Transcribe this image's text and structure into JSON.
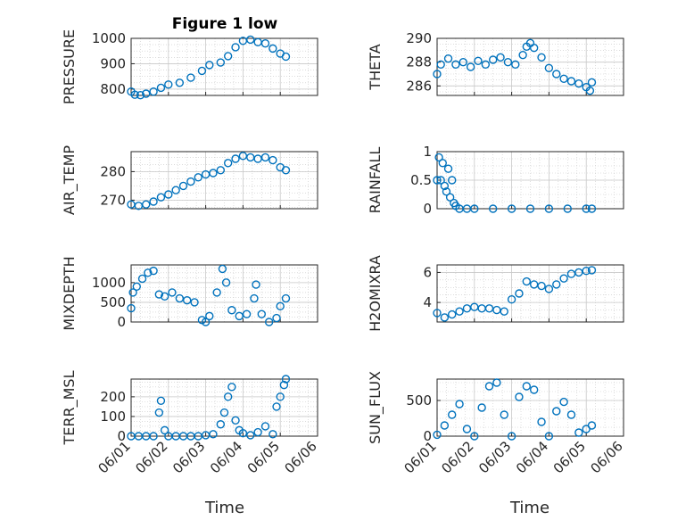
{
  "figure": {
    "title": "Figure 1 low",
    "xlabel": "Time",
    "colors": {
      "marker": "#0072bd",
      "axis": "#262626",
      "grid": "#c8c8c8"
    }
  },
  "chart_data": [
    {
      "type": "scatter",
      "ylabel": "PRESSURE",
      "xlim": [
        "06/01",
        "06/06"
      ],
      "ylim": [
        775,
        1000
      ],
      "yticks": [
        800,
        900,
        1000
      ],
      "x": [
        1.0,
        1.1,
        1.25,
        1.4,
        1.6,
        1.8,
        2.0,
        2.3,
        2.6,
        2.9,
        3.1,
        3.4,
        3.6,
        3.8,
        4.0,
        4.2,
        4.4,
        4.6,
        4.8,
        5.0,
        5.15
      ],
      "y": [
        790,
        778,
        776,
        782,
        790,
        805,
        818,
        825,
        845,
        872,
        895,
        905,
        930,
        965,
        990,
        995,
        985,
        980,
        960,
        940,
        928
      ]
    },
    {
      "type": "scatter",
      "ylabel": "THETA",
      "xlim": [
        "06/01",
        "06/06"
      ],
      "ylim": [
        285.2,
        290
      ],
      "yticks": [
        286,
        288,
        290
      ],
      "x": [
        1.0,
        1.1,
        1.3,
        1.5,
        1.7,
        1.9,
        2.1,
        2.3,
        2.5,
        2.7,
        2.9,
        3.1,
        3.3,
        3.4,
        3.5,
        3.6,
        3.8,
        4.0,
        4.2,
        4.4,
        4.6,
        4.8,
        5.0,
        5.1,
        5.15
      ],
      "y": [
        287.0,
        287.8,
        288.3,
        287.8,
        288.0,
        287.6,
        288.1,
        287.8,
        288.2,
        288.4,
        288.0,
        287.8,
        288.6,
        289.3,
        289.6,
        289.2,
        288.4,
        287.5,
        287.0,
        286.6,
        286.4,
        286.2,
        285.9,
        285.6,
        286.3
      ]
    },
    {
      "type": "scatter",
      "ylabel": "AIR_TEMP",
      "xlim": [
        "06/01",
        "06/06"
      ],
      "ylim": [
        267,
        287
      ],
      "yticks": [
        270,
        280
      ],
      "x": [
        1.0,
        1.2,
        1.4,
        1.6,
        1.8,
        2.0,
        2.2,
        2.4,
        2.6,
        2.8,
        3.0,
        3.2,
        3.4,
        3.6,
        3.8,
        4.0,
        4.2,
        4.4,
        4.6,
        4.8,
        5.0,
        5.15
      ],
      "y": [
        268.5,
        268.0,
        268.5,
        269.5,
        271.0,
        272.0,
        273.5,
        275.0,
        276.5,
        278.0,
        279.0,
        279.5,
        280.5,
        283.0,
        284.5,
        285.5,
        285.0,
        284.5,
        285.0,
        284.0,
        281.5,
        280.5
      ]
    },
    {
      "type": "scatter",
      "ylabel": "RAINFALL",
      "xlim": [
        "06/01",
        "06/06"
      ],
      "ylim": [
        0,
        1
      ],
      "yticks": [
        0,
        0.5,
        1
      ],
      "x": [
        1.0,
        1.05,
        1.1,
        1.15,
        1.2,
        1.25,
        1.3,
        1.35,
        1.4,
        1.45,
        1.5,
        1.6,
        1.8,
        2.0,
        2.5,
        3.0,
        3.5,
        4.0,
        4.5,
        5.0,
        5.15
      ],
      "y": [
        0.5,
        0.9,
        0.5,
        0.8,
        0.4,
        0.3,
        0.7,
        0.2,
        0.5,
        0.1,
        0.05,
        0,
        0,
        0,
        0,
        0,
        0,
        0,
        0,
        0,
        0
      ]
    },
    {
      "type": "scatter",
      "ylabel": "MIXDEPTH",
      "xlim": [
        "06/01",
        "06/06"
      ],
      "ylim": [
        0,
        1450
      ],
      "yticks": [
        0,
        500,
        1000
      ],
      "x": [
        1.0,
        1.05,
        1.15,
        1.3,
        1.45,
        1.6,
        1.75,
        1.9,
        2.1,
        2.3,
        2.5,
        2.7,
        2.9,
        3.0,
        3.1,
        3.3,
        3.45,
        3.55,
        3.7,
        3.9,
        4.1,
        4.3,
        4.35,
        4.5,
        4.7,
        4.9,
        5.0,
        5.15
      ],
      "y": [
        350,
        750,
        900,
        1100,
        1250,
        1300,
        700,
        650,
        750,
        600,
        550,
        500,
        50,
        0,
        150,
        750,
        1350,
        1000,
        300,
        150,
        200,
        600,
        950,
        200,
        0,
        100,
        400,
        600
      ]
    },
    {
      "type": "scatter",
      "ylabel": "H2OMIXRA",
      "xlim": [
        "06/01",
        "06/06"
      ],
      "ylim": [
        2.7,
        6.5
      ],
      "yticks": [
        4,
        6
      ],
      "x": [
        1.0,
        1.2,
        1.4,
        1.6,
        1.8,
        2.0,
        2.2,
        2.4,
        2.6,
        2.8,
        3.0,
        3.2,
        3.4,
        3.6,
        3.8,
        4.0,
        4.2,
        4.4,
        4.6,
        4.8,
        5.0,
        5.15
      ],
      "y": [
        3.3,
        3.0,
        3.2,
        3.4,
        3.6,
        3.7,
        3.6,
        3.6,
        3.5,
        3.4,
        4.2,
        4.6,
        5.4,
        5.2,
        5.1,
        4.9,
        5.2,
        5.6,
        5.9,
        6.0,
        6.1,
        6.15
      ]
    },
    {
      "type": "scatter",
      "ylabel": "TERR_MSL",
      "xlim": [
        "06/01",
        "06/06"
      ],
      "ylim": [
        0,
        290
      ],
      "yticks": [
        0,
        100,
        200
      ],
      "x": [
        1.0,
        1.2,
        1.4,
        1.6,
        1.75,
        1.8,
        1.9,
        2.0,
        2.2,
        2.4,
        2.6,
        2.8,
        3.0,
        3.2,
        3.4,
        3.5,
        3.6,
        3.7,
        3.8,
        3.9,
        4.0,
        4.2,
        4.4,
        4.6,
        4.8,
        4.9,
        5.0,
        5.1,
        5.15
      ],
      "y": [
        0,
        0,
        0,
        0,
        120,
        180,
        30,
        0,
        0,
        0,
        0,
        0,
        5,
        10,
        60,
        120,
        200,
        250,
        80,
        30,
        15,
        5,
        20,
        50,
        10,
        150,
        200,
        260,
        290
      ]
    },
    {
      "type": "scatter",
      "ylabel": "SUN_FLUX",
      "xlim": [
        "06/01",
        "06/06"
      ],
      "ylim": [
        0,
        800
      ],
      "yticks": [
        0,
        500
      ],
      "x": [
        1.0,
        1.2,
        1.4,
        1.6,
        1.8,
        2.0,
        2.2,
        2.4,
        2.6,
        2.8,
        3.0,
        3.2,
        3.4,
        3.6,
        3.8,
        4.0,
        4.2,
        4.4,
        4.6,
        4.8,
        5.0,
        5.15
      ],
      "y": [
        20,
        150,
        300,
        450,
        100,
        0,
        400,
        700,
        750,
        300,
        0,
        550,
        700,
        650,
        200,
        0,
        350,
        480,
        300,
        50,
        100,
        150
      ]
    }
  ]
}
